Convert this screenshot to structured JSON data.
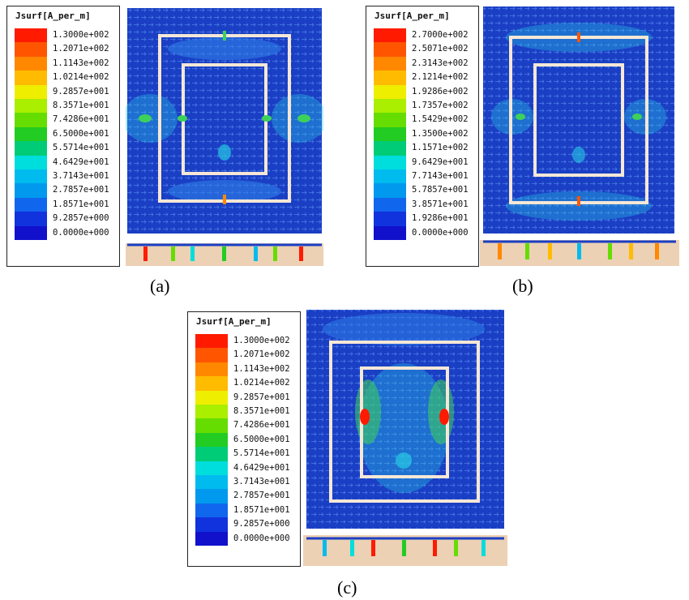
{
  "colors": {
    "scale": [
      "#ff1a00",
      "#ff5500",
      "#ff8800",
      "#ffbb00",
      "#eeee00",
      "#aaee00",
      "#66dd00",
      "#22cc22",
      "#00cc77",
      "#00dddd",
      "#00bbee",
      "#0099ee",
      "#1166ee",
      "#1133dd",
      "#1111cc"
    ],
    "background_plate": "#f6dcc6",
    "field_dark": "#1a3fc4",
    "field_mid": "#2e7ee8",
    "field_cyan": "#27c9e4",
    "field_green": "#3ed15a",
    "strip": "#ecd1b4"
  },
  "panels": [
    {
      "id": "a",
      "legend_title": "Jsurf[A_per_m]",
      "ticks": [
        "1.3000e+002",
        "1.2071e+002",
        "1.1143e+002",
        "1.0214e+002",
        "9.2857e+001",
        "8.3571e+001",
        "7.4286e+001",
        "6.5000e+001",
        "5.5714e+001",
        "4.6429e+001",
        "3.7143e+001",
        "2.7857e+001",
        "1.8571e+001",
        "9.2857e+000",
        "0.0000e+000"
      ],
      "caption": "(a)"
    },
    {
      "id": "b",
      "legend_title": "Jsurf[A_per_m]",
      "ticks": [
        "2.7000e+002",
        "2.5071e+002",
        "2.3143e+002",
        "2.1214e+002",
        "1.9286e+002",
        "1.7357e+002",
        "1.5429e+002",
        "1.3500e+002",
        "1.1571e+002",
        "9.6429e+001",
        "7.7143e+001",
        "5.7857e+001",
        "3.8571e+001",
        "1.9286e+001",
        "0.0000e+000"
      ],
      "caption": "(b)"
    },
    {
      "id": "c",
      "legend_title": "Jsurf[A_per_m]",
      "ticks": [
        "1.3000e+002",
        "1.2071e+002",
        "1.1143e+002",
        "1.0214e+002",
        "9.2857e+001",
        "8.3571e+001",
        "7.4286e+001",
        "6.5000e+001",
        "5.5714e+001",
        "4.6429e+001",
        "3.7143e+001",
        "2.7857e+001",
        "1.8571e+001",
        "9.2857e+000",
        "0.0000e+000"
      ],
      "caption": "(c)"
    }
  ]
}
